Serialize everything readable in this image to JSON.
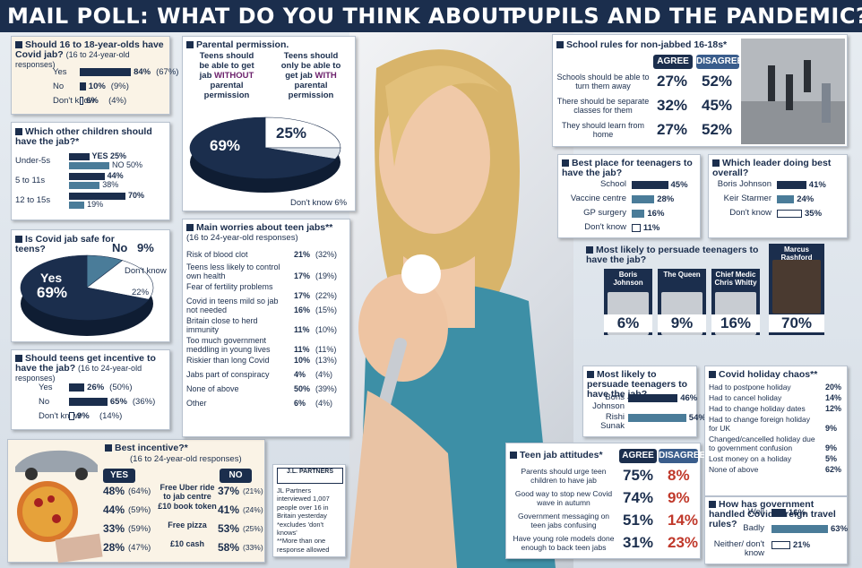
{
  "title": {
    "left": "MAIL POLL: WHAT DO YOU THINK ABOUT",
    "right": "PUPILS AND THE PANDEMIC?"
  },
  "q16": {
    "title": "Should 16 to 18-year-olds have Covid jab?",
    "sub": "(16 to 24-year-old responses)",
    "rows": [
      {
        "label": "Yes",
        "value": 84,
        "text": "84%",
        "old": "(67%)"
      },
      {
        "label": "No",
        "value": 10,
        "text": "10%",
        "old": "(9%)"
      },
      {
        "label": "Don't know",
        "value": 6,
        "text": "6%",
        "old": "(4%)"
      }
    ]
  },
  "other": {
    "title": "Which other children should have the jab?*",
    "yes_label": "YES",
    "no_label": "NO",
    "rows": [
      {
        "label": "Under-5s",
        "yes": 25,
        "no": 50
      },
      {
        "label": "5 to 11s",
        "yes": 44,
        "no": 38
      },
      {
        "label": "12 to 15s",
        "yes": 70,
        "no": 19
      }
    ]
  },
  "safe": {
    "title": "Is Covid jab safe for teens?",
    "yes": "Yes",
    "yes_pct": "69%",
    "no": "No",
    "no_pct": "9%",
    "dk": "Don't know",
    "dk_pct": "22%"
  },
  "incentive": {
    "title": "Should teens get incentive to have the jab?",
    "sub": "(16 to 24-year-old responses)",
    "rows": [
      {
        "label": "Yes",
        "value": 26,
        "text": "26%",
        "old": "(50%)"
      },
      {
        "label": "No",
        "value": 65,
        "text": "65%",
        "old": "(36%)"
      },
      {
        "label": "Don't know",
        "value": 9,
        "text": "9%",
        "old": "(14%)"
      }
    ]
  },
  "parental": {
    "title": "Parental permission.",
    "left": [
      "Teens should",
      "be able to get",
      "jab ",
      "WITHOUT",
      "parental",
      "permission"
    ],
    "right": [
      "Teens should",
      "only be able to",
      "get jab ",
      "WITH",
      "parental",
      "permission"
    ],
    "pct_without": "69%",
    "pct_with": "25%",
    "dk": "Don't know 6%"
  },
  "worries": {
    "title": "Main worries about teen jabs**",
    "sub": "(16 to 24-year-old responses)",
    "rows": [
      {
        "label": "Risk of blood clot",
        "v": "21%",
        "o": "(32%)"
      },
      {
        "label": "Teens less likely to control own health",
        "v": "17%",
        "o": "(19%)"
      },
      {
        "label": "Fear of fertility problems",
        "v": "17%",
        "o": "(22%)"
      },
      {
        "label": "Covid in teens mild so jab not needed",
        "v": "16%",
        "o": "(15%)"
      },
      {
        "label": "Britain close to herd immunity",
        "v": "11%",
        "o": "(10%)"
      },
      {
        "label": "Too much government meddling in young lives",
        "v": "11%",
        "o": "(11%)"
      },
      {
        "label": "Riskier than long Covid",
        "v": "10%",
        "o": "(13%)"
      },
      {
        "label": "Jabs part of conspiracy",
        "v": "4%",
        "o": "(4%)"
      },
      {
        "label": "None of above",
        "v": "50%",
        "o": "(39%)"
      },
      {
        "label": "Other",
        "v": "6%",
        "o": "(4%)"
      }
    ]
  },
  "best_inc": {
    "title": "Best incentive?*",
    "sub": "(16 to 24-year-old responses)",
    "yes": "YES",
    "no": "NO",
    "rows": [
      {
        "label": "Free Uber ride to jab centre",
        "yes": "48%",
        "yo": "(64%)",
        "no": "37%",
        "no_o": "(21%)"
      },
      {
        "label": "£10 book token",
        "yes": "44%",
        "yo": "(59%)",
        "no": "41%",
        "no_o": "(24%)"
      },
      {
        "label": "Free pizza",
        "yes": "33%",
        "yo": "(59%)",
        "no": "53%",
        "no_o": "(25%)"
      },
      {
        "label": "£10 cash",
        "yes": "28%",
        "yo": "(47%)",
        "no": "58%",
        "no_o": "(33%)"
      }
    ]
  },
  "partners": {
    "logo": "J.L. PARTNERS",
    "text": [
      "JL Partners",
      "interviewed 1,007",
      "people over 16 in",
      "Britain yesterday",
      "*excludes 'don't knows'",
      "**More than one",
      "response allowed"
    ]
  },
  "rules": {
    "title": "School rules for non-jabbed 16-18s*",
    "agree": "AGREE",
    "disagree": "DISAGREE",
    "rows": [
      {
        "label": "Schools should be able to turn them away",
        "a": "27%",
        "d": "52%"
      },
      {
        "label": "There should be separate classes for them",
        "a": "32%",
        "d": "45%"
      },
      {
        "label": "They should learn from home",
        "a": "27%",
        "d": "52%"
      }
    ]
  },
  "place": {
    "title": "Best place for teenagers to have the jab?",
    "rows": [
      {
        "label": "School",
        "value": 45,
        "text": "45%"
      },
      {
        "label": "Vaccine centre",
        "value": 28,
        "text": "28%"
      },
      {
        "label": "GP surgery",
        "value": 16,
        "text": "16%"
      },
      {
        "label": "Don't know",
        "value": 11,
        "text": "11%"
      }
    ]
  },
  "leader": {
    "title": "Which leader doing best overall?",
    "rows": [
      {
        "label": "Boris Johnson",
        "value": 41,
        "text": "41%"
      },
      {
        "label": "Keir Starmer",
        "value": 24,
        "text": "24%"
      },
      {
        "label": "Don't know",
        "value": 35,
        "text": "35%"
      }
    ]
  },
  "persuade": {
    "title": "Most likely to persuade teenagers to have the jab?",
    "people": [
      {
        "name": "Boris Johnson",
        "pct": "6%"
      },
      {
        "name": "The Queen",
        "pct": "9%"
      },
      {
        "name": "Chief Medic Chris Whitty",
        "pct": "16%"
      },
      {
        "name": "Marcus Rashford",
        "pct": "70%"
      }
    ]
  },
  "persuade2": {
    "title": "Most likely to persuade teenagers to have the jab?",
    "rows": [
      {
        "label": "Boris Johnson",
        "value": 46,
        "text": "46%"
      },
      {
        "label": "Rishi Sunak",
        "value": 54,
        "text": "54%"
      }
    ]
  },
  "attitudes": {
    "title": "Teen jab attitudes*",
    "agree": "AGREE",
    "disagree": "DISAGREE",
    "rows": [
      {
        "label": "Parents should urge teen children to have jab",
        "a": "75%",
        "d": "8%"
      },
      {
        "label": "Good way to stop new Covid wave in autumn",
        "a": "74%",
        "d": "9%"
      },
      {
        "label": "Government messaging on teen jabs confusing",
        "a": "51%",
        "d": "14%"
      },
      {
        "label": "Have young role models done enough to back teen jabs",
        "a": "31%",
        "d": "23%"
      }
    ]
  },
  "holiday": {
    "title": "Covid holiday chaos**",
    "rows": [
      {
        "label": "Had to postpone holiday",
        "v": "20%"
      },
      {
        "label": "Had to cancel holiday",
        "v": "14%"
      },
      {
        "label": "Had to change holiday dates",
        "v": "12%"
      },
      {
        "label": "Had to change foreign holiday for UK",
        "v": "9%"
      },
      {
        "label": "Changed/cancelled holiday due to government confusion",
        "v": "9%"
      },
      {
        "label": "Lost money on a holiday",
        "v": "5%"
      },
      {
        "label": "None of above",
        "v": "62%"
      }
    ]
  },
  "travel": {
    "title": "How has government handled Covid foreign travel rules?",
    "rows": [
      {
        "label": "Well",
        "value": 16,
        "text": "16%"
      },
      {
        "label": "Badly",
        "value": 63,
        "text": "63%"
      },
      {
        "label": "Neither/ don't know",
        "value": 21,
        "text": "21%"
      }
    ]
  },
  "colors": {
    "navy": "#1b2e4d",
    "teal": "#4a7c99",
    "red": "#c0392b"
  },
  "chart_data": [
    {
      "type": "bar",
      "title": "Should 16 to 18-year-olds have Covid jab?",
      "categories": [
        "Yes",
        "No",
        "Don't know"
      ],
      "values": [
        84,
        10,
        6
      ],
      "previous": [
        67,
        9,
        4
      ]
    },
    {
      "type": "bar",
      "title": "Which other children should have the jab?*",
      "categories": [
        "Under-5s",
        "5 to 11s",
        "12 to 15s"
      ],
      "series": [
        {
          "name": "YES",
          "values": [
            25,
            44,
            70
          ]
        },
        {
          "name": "NO",
          "values": [
            50,
            38,
            19
          ]
        }
      ]
    },
    {
      "type": "pie",
      "title": "Is Covid jab safe for teens?",
      "categories": [
        "Yes",
        "No",
        "Don't know"
      ],
      "values": [
        69,
        9,
        22
      ]
    },
    {
      "type": "bar",
      "title": "Should teens get incentive to have the jab?",
      "categories": [
        "Yes",
        "No",
        "Don't know"
      ],
      "values": [
        26,
        65,
        9
      ],
      "previous": [
        50,
        36,
        14
      ]
    },
    {
      "type": "pie",
      "title": "Parental permission.",
      "values": [
        69,
        25,
        6
      ]
    },
    {
      "type": "bar",
      "title": "Best place for teenagers to have the jab?",
      "categories": [
        "School",
        "Vaccine centre",
        "GP surgery",
        "Don't know"
      ],
      "values": [
        45,
        28,
        16,
        11
      ]
    },
    {
      "type": "bar",
      "title": "Which leader doing best overall?",
      "categories": [
        "Boris Johnson",
        "Keir Starmer",
        "Don't know"
      ],
      "values": [
        41,
        24,
        35
      ]
    },
    {
      "type": "bar",
      "title": "Most likely to persuade teenagers to have the jab?",
      "categories": [
        "Boris Johnson",
        "Rishi Sunak"
      ],
      "values": [
        46,
        54
      ]
    },
    {
      "type": "bar",
      "title": "How has government handled Covid foreign travel rules?",
      "categories": [
        "Well",
        "Badly",
        "Neither/ don't know"
      ],
      "values": [
        16,
        63,
        21
      ]
    }
  ]
}
